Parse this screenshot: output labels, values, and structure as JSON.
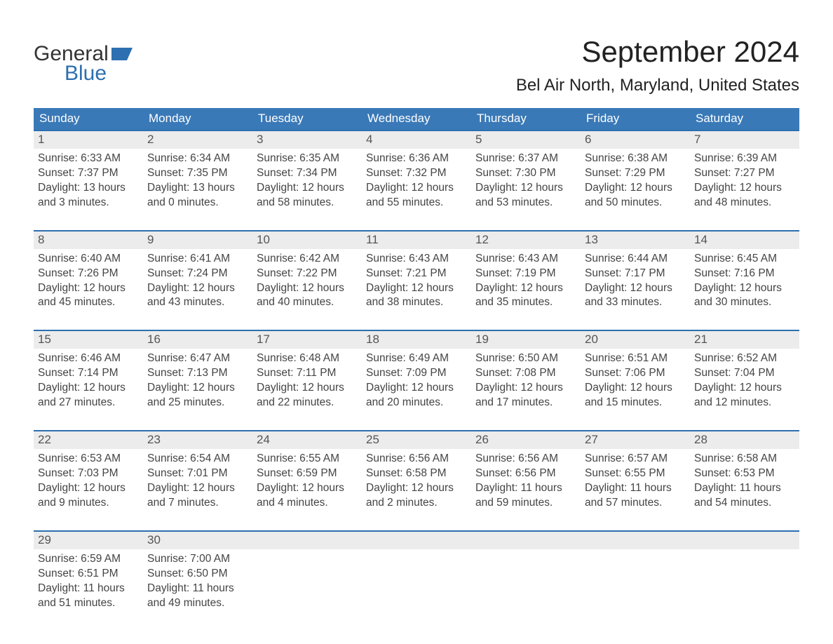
{
  "logo": {
    "word1": "General",
    "word2": "Blue",
    "flag_color": "#2d6fb0"
  },
  "title": "September 2024",
  "subtitle": "Bel Air North, Maryland, United States",
  "colors": {
    "header_blue": "#3a79b7",
    "accent_blue": "#2d6fb0",
    "date_bg": "#ececec",
    "text": "#333333",
    "background": "#ffffff"
  },
  "weekdays": [
    "Sunday",
    "Monday",
    "Tuesday",
    "Wednesday",
    "Thursday",
    "Friday",
    "Saturday"
  ],
  "labels": {
    "sunrise": "Sunrise:",
    "sunset": "Sunset:",
    "daylight": "Daylight:"
  },
  "weeks": [
    [
      {
        "date": "1",
        "sunrise": "6:33 AM",
        "sunset": "7:37 PM",
        "daylight": "13 hours and 3 minutes."
      },
      {
        "date": "2",
        "sunrise": "6:34 AM",
        "sunset": "7:35 PM",
        "daylight": "13 hours and 0 minutes."
      },
      {
        "date": "3",
        "sunrise": "6:35 AM",
        "sunset": "7:34 PM",
        "daylight": "12 hours and 58 minutes."
      },
      {
        "date": "4",
        "sunrise": "6:36 AM",
        "sunset": "7:32 PM",
        "daylight": "12 hours and 55 minutes."
      },
      {
        "date": "5",
        "sunrise": "6:37 AM",
        "sunset": "7:30 PM",
        "daylight": "12 hours and 53 minutes."
      },
      {
        "date": "6",
        "sunrise": "6:38 AM",
        "sunset": "7:29 PM",
        "daylight": "12 hours and 50 minutes."
      },
      {
        "date": "7",
        "sunrise": "6:39 AM",
        "sunset": "7:27 PM",
        "daylight": "12 hours and 48 minutes."
      }
    ],
    [
      {
        "date": "8",
        "sunrise": "6:40 AM",
        "sunset": "7:26 PM",
        "daylight": "12 hours and 45 minutes."
      },
      {
        "date": "9",
        "sunrise": "6:41 AM",
        "sunset": "7:24 PM",
        "daylight": "12 hours and 43 minutes."
      },
      {
        "date": "10",
        "sunrise": "6:42 AM",
        "sunset": "7:22 PM",
        "daylight": "12 hours and 40 minutes."
      },
      {
        "date": "11",
        "sunrise": "6:43 AM",
        "sunset": "7:21 PM",
        "daylight": "12 hours and 38 minutes."
      },
      {
        "date": "12",
        "sunrise": "6:43 AM",
        "sunset": "7:19 PM",
        "daylight": "12 hours and 35 minutes."
      },
      {
        "date": "13",
        "sunrise": "6:44 AM",
        "sunset": "7:17 PM",
        "daylight": "12 hours and 33 minutes."
      },
      {
        "date": "14",
        "sunrise": "6:45 AM",
        "sunset": "7:16 PM",
        "daylight": "12 hours and 30 minutes."
      }
    ],
    [
      {
        "date": "15",
        "sunrise": "6:46 AM",
        "sunset": "7:14 PM",
        "daylight": "12 hours and 27 minutes."
      },
      {
        "date": "16",
        "sunrise": "6:47 AM",
        "sunset": "7:13 PM",
        "daylight": "12 hours and 25 minutes."
      },
      {
        "date": "17",
        "sunrise": "6:48 AM",
        "sunset": "7:11 PM",
        "daylight": "12 hours and 22 minutes."
      },
      {
        "date": "18",
        "sunrise": "6:49 AM",
        "sunset": "7:09 PM",
        "daylight": "12 hours and 20 minutes."
      },
      {
        "date": "19",
        "sunrise": "6:50 AM",
        "sunset": "7:08 PM",
        "daylight": "12 hours and 17 minutes."
      },
      {
        "date": "20",
        "sunrise": "6:51 AM",
        "sunset": "7:06 PM",
        "daylight": "12 hours and 15 minutes."
      },
      {
        "date": "21",
        "sunrise": "6:52 AM",
        "sunset": "7:04 PM",
        "daylight": "12 hours and 12 minutes."
      }
    ],
    [
      {
        "date": "22",
        "sunrise": "6:53 AM",
        "sunset": "7:03 PM",
        "daylight": "12 hours and 9 minutes."
      },
      {
        "date": "23",
        "sunrise": "6:54 AM",
        "sunset": "7:01 PM",
        "daylight": "12 hours and 7 minutes."
      },
      {
        "date": "24",
        "sunrise": "6:55 AM",
        "sunset": "6:59 PM",
        "daylight": "12 hours and 4 minutes."
      },
      {
        "date": "25",
        "sunrise": "6:56 AM",
        "sunset": "6:58 PM",
        "daylight": "12 hours and 2 minutes."
      },
      {
        "date": "26",
        "sunrise": "6:56 AM",
        "sunset": "6:56 PM",
        "daylight": "11 hours and 59 minutes."
      },
      {
        "date": "27",
        "sunrise": "6:57 AM",
        "sunset": "6:55 PM",
        "daylight": "11 hours and 57 minutes."
      },
      {
        "date": "28",
        "sunrise": "6:58 AM",
        "sunset": "6:53 PM",
        "daylight": "11 hours and 54 minutes."
      }
    ],
    [
      {
        "date": "29",
        "sunrise": "6:59 AM",
        "sunset": "6:51 PM",
        "daylight": "11 hours and 51 minutes."
      },
      {
        "date": "30",
        "sunrise": "7:00 AM",
        "sunset": "6:50 PM",
        "daylight": "11 hours and 49 minutes."
      },
      null,
      null,
      null,
      null,
      null
    ]
  ]
}
